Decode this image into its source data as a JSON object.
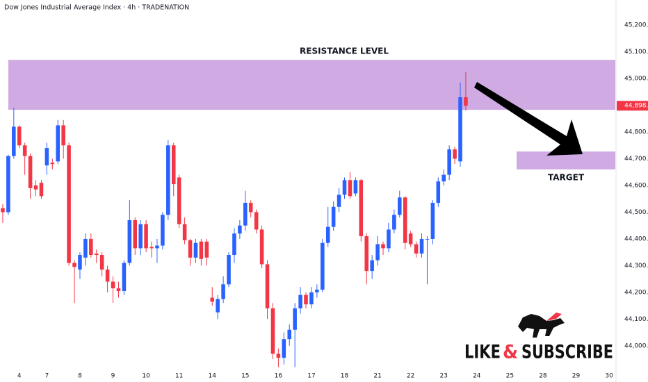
{
  "chart_data": {
    "type": "candlestick",
    "title": "Dow Jones Industrial Average Index · 4h · TRADENATION",
    "up_color": "#2962ff",
    "down_color": "#f23645",
    "open": [
      44515,
      44500,
      44710,
      44820,
      44750,
      44710,
      44600,
      44610,
      44675,
      44685,
      44690,
      44825,
      44750,
      44310,
      44285,
      44330,
      44400,
      44345,
      44340,
      44285,
      44240,
      44215,
      44205,
      44310,
      44470,
      44365,
      44455,
      44370,
      44365,
      44375,
      44490,
      44750,
      44630,
      44455,
      44395,
      44330,
      44390,
      44390,
      44180,
      44125,
      44175,
      44230,
      44340,
      44420,
      44450,
      44535,
      44500,
      44435,
      44305,
      44140,
      43970,
      43955,
      44025,
      44060,
      44140,
      44190,
      44155,
      44200,
      44210,
      44385,
      44445,
      44520,
      44565,
      44620,
      44570,
      44620,
      44410,
      44280,
      44320,
      44380,
      44365,
      44435,
      44490,
      44555,
      44420,
      44380,
      44345,
      44400,
      44400,
      44535,
      44615,
      44640,
      44735,
      44690,
      44930
    ],
    "high": [
      44530,
      44715,
      44890,
      44825,
      44760,
      44720,
      44620,
      44620,
      44760,
      44700,
      44845,
      44845,
      44760,
      44320,
      44350,
      44420,
      44420,
      44360,
      44350,
      44300,
      44260,
      44240,
      44320,
      44545,
      44480,
      44470,
      44470,
      44390,
      44400,
      44500,
      44770,
      44760,
      44640,
      44480,
      44400,
      44400,
      44400,
      44400,
      44220,
      44190,
      44260,
      44350,
      44440,
      44470,
      44580,
      44545,
      44510,
      44450,
      44320,
      44160,
      43990,
      44050,
      44080,
      44160,
      44220,
      44200,
      44220,
      44230,
      44400,
      44520,
      44540,
      44590,
      44630,
      44650,
      44630,
      44625,
      44420,
      44340,
      44410,
      44390,
      44460,
      44510,
      44580,
      44560,
      44430,
      44390,
      44420,
      44410,
      44545,
      44630,
      44660,
      44750,
      44745,
      44985,
      45025
    ],
    "low": [
      44460,
      44490,
      44700,
      44740,
      44640,
      44550,
      44560,
      44550,
      44640,
      44660,
      44680,
      44700,
      44300,
      44160,
      44250,
      44300,
      44330,
      44310,
      44260,
      44200,
      44160,
      44180,
      44190,
      44300,
      44340,
      44340,
      44350,
      44330,
      44310,
      44360,
      44470,
      44560,
      44440,
      44380,
      44300,
      44310,
      44300,
      44300,
      44150,
      44100,
      44160,
      44220,
      44310,
      44400,
      44430,
      44480,
      44420,
      44290,
      44100,
      43950,
      43920,
      43930,
      44000,
      43920,
      44120,
      44140,
      44140,
      44180,
      44200,
      44370,
      44430,
      44500,
      44550,
      44550,
      44560,
      44390,
      44230,
      44250,
      44300,
      44340,
      44350,
      44420,
      44480,
      44360,
      44370,
      44330,
      44330,
      44230,
      44380,
      44520,
      44600,
      44620,
      44680,
      44670,
      44880
    ],
    "close": [
      44500,
      44710,
      44820,
      44750,
      44710,
      44590,
      44585,
      44560,
      44740,
      44680,
      44825,
      44750,
      44310,
      44295,
      44340,
      44400,
      44340,
      44340,
      44285,
      44240,
      44215,
      44205,
      44310,
      44470,
      44365,
      44455,
      44365,
      44365,
      44375,
      44490,
      44750,
      44605,
      44455,
      44395,
      44330,
      44385,
      44325,
      44330,
      44165,
      44175,
      44230,
      44340,
      44420,
      44450,
      44535,
      44500,
      44435,
      44305,
      44140,
      43970,
      43955,
      44025,
      44060,
      44140,
      44190,
      44155,
      44200,
      44210,
      44385,
      44445,
      44520,
      44565,
      44620,
      44560,
      44620,
      44410,
      44280,
      44320,
      44380,
      44365,
      44435,
      44490,
      44555,
      44385,
      44380,
      44345,
      44400,
      44400,
      44535,
      44615,
      44640,
      44735,
      44700,
      44930,
      44898.3
    ],
    "xlim": [
      -0.5,
      111
    ],
    "xticks": [
      {
        "value": 3,
        "label": "4"
      },
      {
        "value": 8,
        "label": "7"
      },
      {
        "value": 14,
        "label": "8"
      },
      {
        "value": 20,
        "label": "9"
      },
      {
        "value": 26,
        "label": "10"
      },
      {
        "value": 32,
        "label": "11"
      },
      {
        "value": 38,
        "label": "14"
      },
      {
        "value": 44,
        "label": "15"
      },
      {
        "value": 50,
        "label": "16"
      },
      {
        "value": 56,
        "label": "17"
      },
      {
        "value": 62,
        "label": "18"
      },
      {
        "value": 68,
        "label": "21"
      },
      {
        "value": 74,
        "label": "22"
      },
      {
        "value": 80,
        "label": "23"
      },
      {
        "value": 86,
        "label": "24"
      },
      {
        "value": 92,
        "label": "25"
      },
      {
        "value": 98,
        "label": "28"
      },
      {
        "value": 104,
        "label": "29"
      },
      {
        "value": 110,
        "label": "30"
      }
    ],
    "ylim": [
      43906,
      45294
    ],
    "yticks": [
      {
        "value": 44000,
        "label": "44,000.0"
      },
      {
        "value": 44100,
        "label": "44,100.0"
      },
      {
        "value": 44200,
        "label": "44,200.0"
      },
      {
        "value": 44300,
        "label": "44,300.0"
      },
      {
        "value": 44400,
        "label": "44,400.0"
      },
      {
        "value": 44500,
        "label": "44,500.0"
      },
      {
        "value": 44600,
        "label": "44,600.0"
      },
      {
        "value": 44700,
        "label": "44,700.0"
      },
      {
        "value": 44800,
        "label": "44,800.0"
      },
      {
        "value": 44900,
        "label": "44,900.0"
      },
      {
        "value": 45000,
        "label": "45,000.0"
      },
      {
        "value": 45100,
        "label": "45,100.0"
      },
      {
        "value": 45200,
        "label": "45,200.0"
      }
    ],
    "grid": false,
    "last_price": {
      "value": 44898.3,
      "label": "44,898.3"
    },
    "zones": [
      {
        "label": "RESISTANCE LEVEL",
        "range": [
          44883,
          45070
        ],
        "color": "#cfaae3"
      },
      {
        "label": "TARGET",
        "range": [
          44660,
          44727
        ],
        "color": "#cfaae3"
      }
    ],
    "logo": [
      "LIKE",
      "&",
      "SUBSCRIBE"
    ]
  }
}
